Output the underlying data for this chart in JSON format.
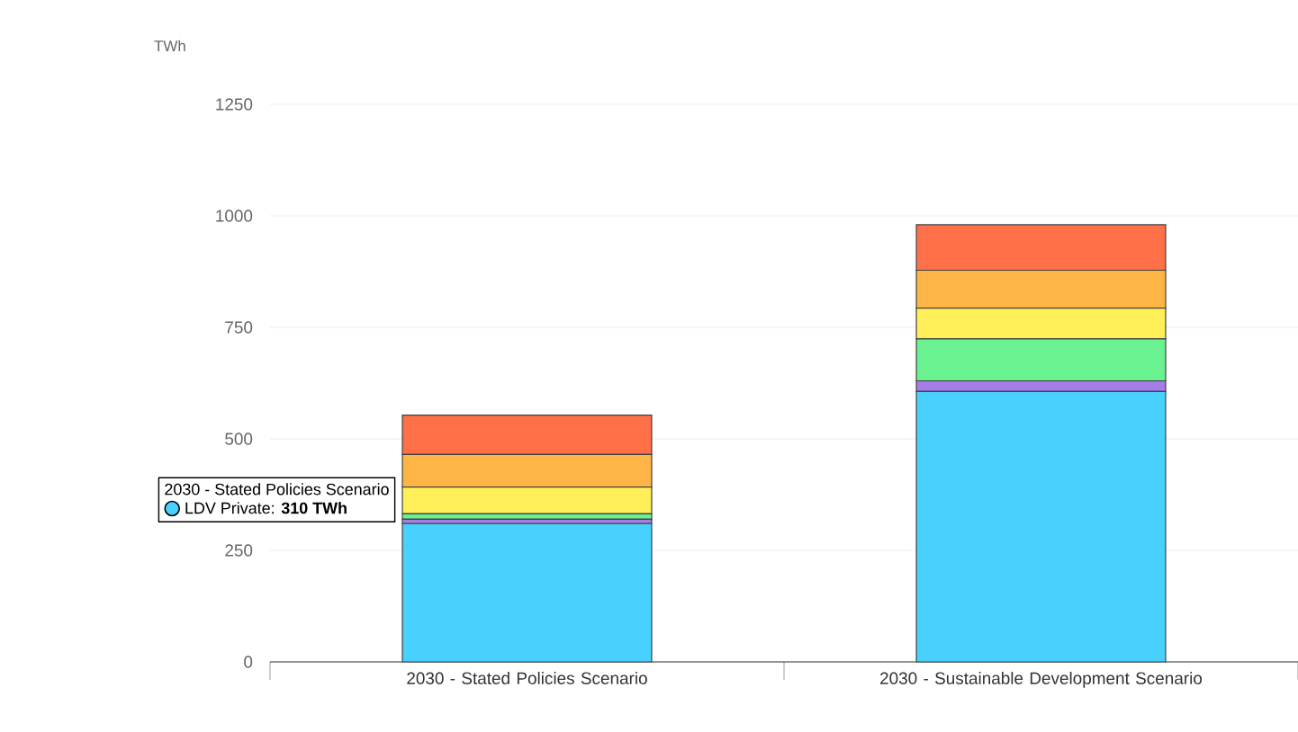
{
  "chart_data": {
    "type": "bar",
    "stacked": true,
    "ylabel": "TWh",
    "categories": [
      "2030 - Stated Policies Scenario",
      "2030 - Sustainable Development Scenario"
    ],
    "series": [
      {
        "color": "#48d1fe",
        "values": [
          310,
          606
        ]
      },
      {
        "color": "#a57ce8",
        "values": [
          10,
          24
        ]
      },
      {
        "color": "#6af291",
        "values": [
          12,
          94
        ]
      },
      {
        "color": "#fff059",
        "values": [
          60,
          69
        ]
      },
      {
        "color": "#ffb545",
        "values": [
          73,
          85
        ]
      },
      {
        "color": "#ff7049",
        "values": [
          88,
          102
        ]
      }
    ],
    "ylim": [
      0,
      1250
    ],
    "yticks": [
      0,
      250,
      500,
      750,
      1000,
      1250
    ],
    "grid": "y",
    "annotations": [
      "2030 - Stated Policies Scenario",
      "LDV Private: **310 TWh**"
    ]
  }
}
